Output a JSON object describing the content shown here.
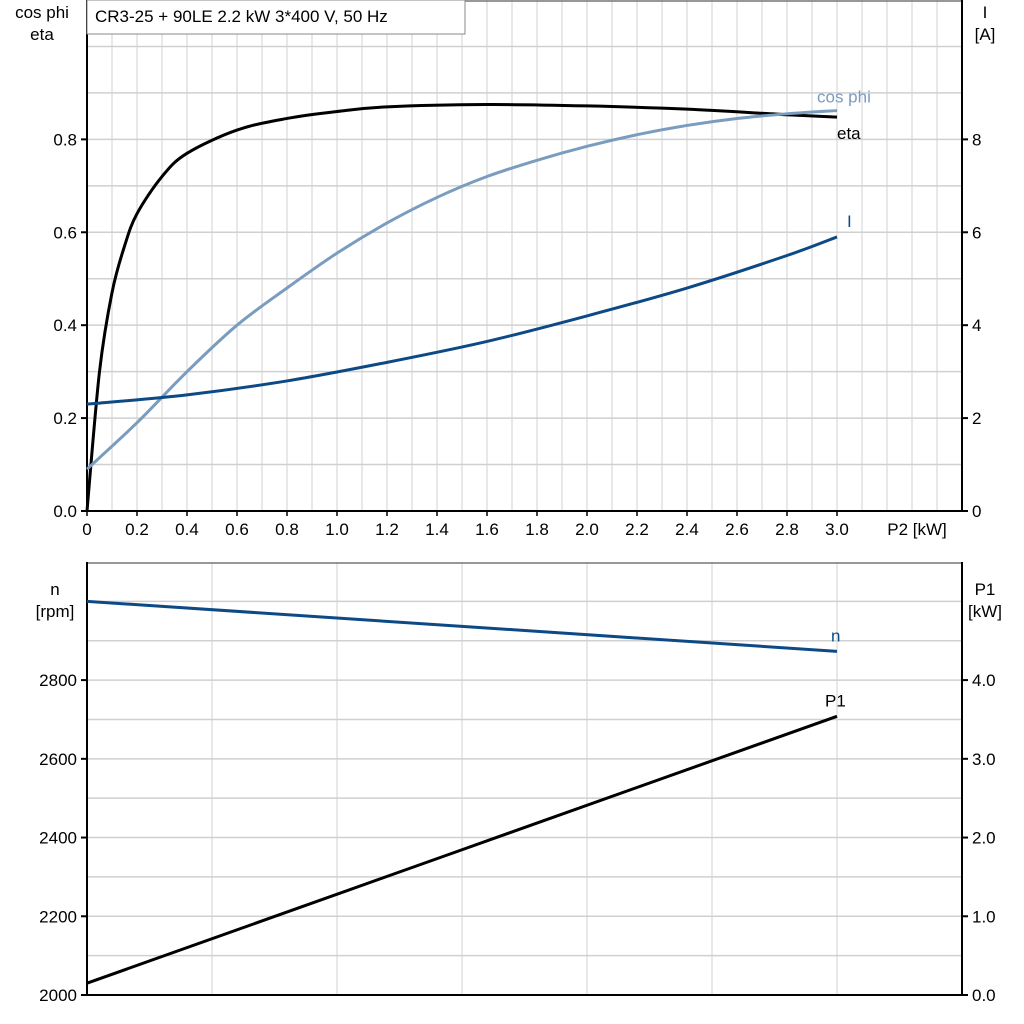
{
  "chart_data": [
    {
      "type": "line",
      "title": "CR3-25 + 90LE   2.2 kW   3*400 V, 50 Hz",
      "xlabel": "P2 [kW]",
      "ylabel_left": [
        "cos phi",
        "eta"
      ],
      "ylabel_right": [
        "I",
        "[A]"
      ],
      "xlim": [
        0,
        3.5
      ],
      "ylim_left": [
        0,
        1.1
      ],
      "ylim_right": [
        0,
        11
      ],
      "x_ticks": [
        "0",
        "0.2",
        "0.4",
        "0.6",
        "0.8",
        "1.0",
        "1.2",
        "1.4",
        "1.6",
        "1.8",
        "2.0",
        "2.2",
        "2.4",
        "2.6",
        "2.8",
        "3.0"
      ],
      "y_ticks_left": [
        "0.0",
        "0.2",
        "0.4",
        "0.6",
        "0.8"
      ],
      "y_ticks_right": [
        "0",
        "2",
        "4",
        "6",
        "8"
      ],
      "grid": true,
      "series": [
        {
          "name": "eta",
          "axis": "left",
          "color": "#000000",
          "x": [
            0,
            0.05,
            0.1,
            0.15,
            0.2,
            0.3,
            0.4,
            0.6,
            0.8,
            1.0,
            1.2,
            1.6,
            2.0,
            2.4,
            2.8,
            3.0
          ],
          "y": [
            0,
            0.3,
            0.47,
            0.57,
            0.64,
            0.72,
            0.77,
            0.82,
            0.845,
            0.86,
            0.87,
            0.875,
            0.872,
            0.865,
            0.853,
            0.848
          ]
        },
        {
          "name": "cos phi",
          "axis": "left",
          "color": "#7a9cbf",
          "x": [
            0,
            0.2,
            0.4,
            0.6,
            0.8,
            1.0,
            1.2,
            1.4,
            1.6,
            1.8,
            2.0,
            2.2,
            2.4,
            2.6,
            2.8,
            3.0
          ],
          "y": [
            0.09,
            0.19,
            0.3,
            0.4,
            0.48,
            0.555,
            0.62,
            0.675,
            0.72,
            0.755,
            0.785,
            0.81,
            0.83,
            0.845,
            0.855,
            0.862
          ]
        },
        {
          "name": "I",
          "axis": "right",
          "color": "#0d4a85",
          "x": [
            0,
            0.4,
            0.8,
            1.2,
            1.6,
            2.0,
            2.4,
            2.8,
            3.0
          ],
          "y": [
            2.3,
            2.5,
            2.8,
            3.2,
            3.65,
            4.2,
            4.8,
            5.5,
            5.9
          ]
        }
      ]
    },
    {
      "type": "line",
      "xlim": [
        0,
        3.5
      ],
      "ylabel_left": [
        "n",
        "[rpm]"
      ],
      "ylabel_right": [
        "P1",
        "[kW]"
      ],
      "ylim_left": [
        2000,
        3100
      ],
      "ylim_right": [
        0,
        5.5
      ],
      "y_ticks_left": [
        "2000",
        "2200",
        "2400",
        "2600",
        "2800"
      ],
      "y_ticks_right": [
        "0.0",
        "1.0",
        "2.0",
        "3.0",
        "4.0"
      ],
      "grid": true,
      "series": [
        {
          "name": "n",
          "axis": "left",
          "color": "#0d4a85",
          "x": [
            0,
            3.0
          ],
          "y": [
            3000,
            2873
          ]
        },
        {
          "name": "P1",
          "axis": "right",
          "color": "#000000",
          "x": [
            0,
            3.0
          ],
          "y": [
            0.15,
            3.54
          ]
        }
      ]
    }
  ]
}
